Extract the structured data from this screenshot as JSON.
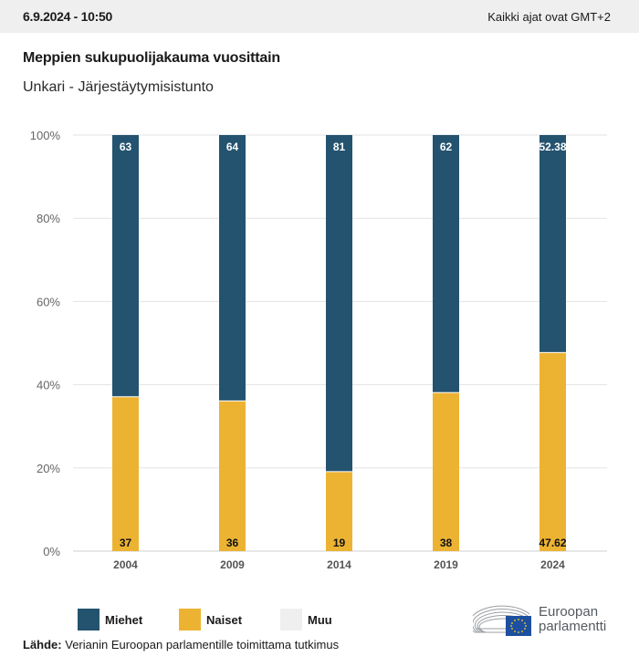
{
  "header": {
    "timestamp": "6.9.2024 - 10:50",
    "timezone_note": "Kaikki ajat ovat GMT+2"
  },
  "colors": {
    "miehet": "#24536f",
    "naiset": "#ecb333",
    "muu": "#efefef",
    "grid": "#e3e3e3",
    "axis_text": "#666666"
  },
  "chart_data": {
    "type": "bar",
    "stacked": true,
    "title": "Meppien sukupuolijakauma vuosittain",
    "subtitle": "Unkari - Järjestäytymisistunto",
    "xlabel": "",
    "ylabel": "",
    "ylim": [
      0,
      100
    ],
    "yticks": [
      0,
      20,
      40,
      60,
      80,
      100
    ],
    "ytick_labels": [
      "0%",
      "20%",
      "40%",
      "60%",
      "80%",
      "100%"
    ],
    "grid": true,
    "categories": [
      "2004",
      "2009",
      "2014",
      "2019",
      "2024"
    ],
    "series": [
      {
        "name": "Naiset",
        "values": [
          37,
          36,
          19,
          38,
          47.62
        ],
        "labels": [
          "37",
          "36",
          "19",
          "38",
          "47.62"
        ]
      },
      {
        "name": "Miehet",
        "values": [
          63,
          64,
          81,
          62,
          52.38
        ],
        "labels": [
          "63",
          "64",
          "81",
          "62",
          "52.38"
        ]
      },
      {
        "name": "Muu",
        "values": [
          0,
          0,
          0,
          0,
          0
        ]
      }
    ],
    "legend": [
      "Miehet",
      "Naiset",
      "Muu"
    ],
    "legend_position": "bottom-left"
  },
  "legend": {
    "items": [
      {
        "label": "Miehet",
        "color": "#24536f"
      },
      {
        "label": "Naiset",
        "color": "#ecb333"
      },
      {
        "label": "Muu",
        "color": "#efefef"
      }
    ]
  },
  "source": {
    "label": "Lähde:",
    "text": " Verianin Euroopan parlamentille toimittama tutkimus"
  },
  "logo": {
    "line1": "Euroopan",
    "line2": "parlamentti"
  }
}
